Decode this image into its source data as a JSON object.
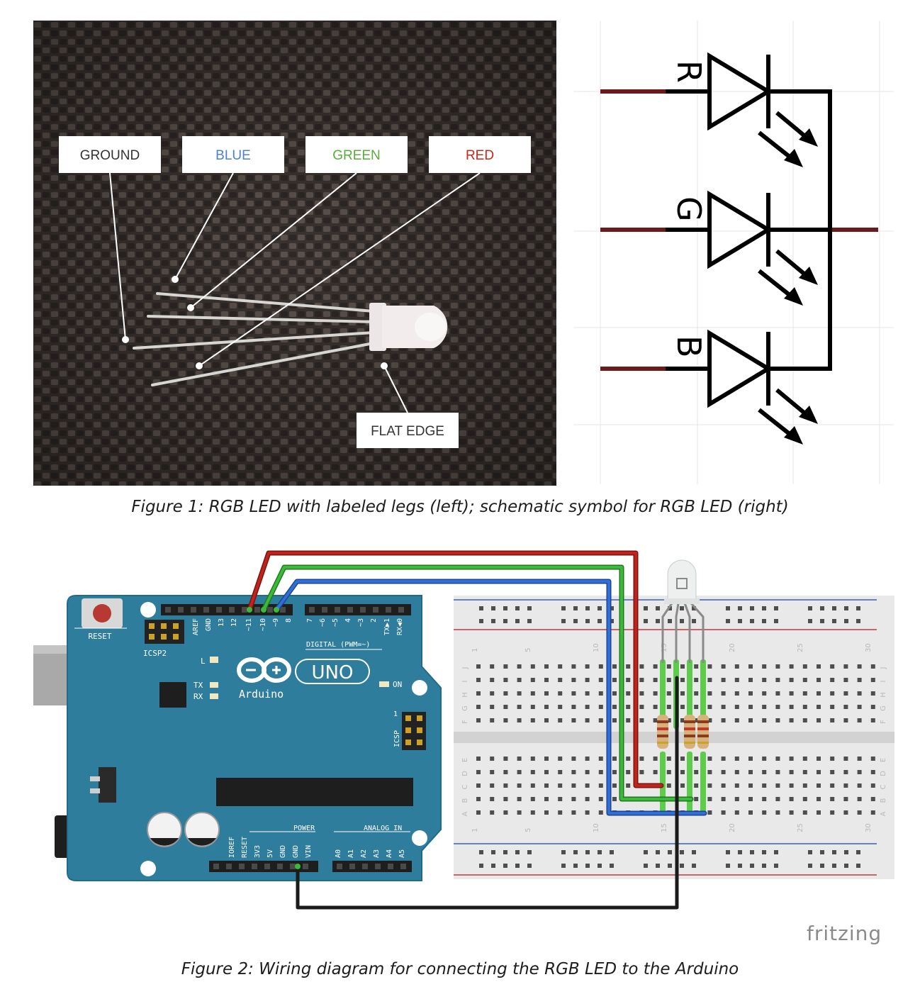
{
  "figure1": {
    "labels": {
      "ground": "GROUND",
      "blue": "BLUE",
      "green": "GREEN",
      "red": "RED",
      "flat_edge": "FLAT EDGE"
    },
    "schematic": {
      "r": "R",
      "g": "G",
      "b": "B"
    },
    "caption": "Figure 1: RGB LED with labeled legs (left); schematic symbol for RGB LED (right)"
  },
  "figure2": {
    "board": {
      "reset": "RESET",
      "icsp2": "ICSP2",
      "aref": "AREF",
      "gnd": "GND",
      "p13": "13",
      "p12": "12",
      "p11": "~11",
      "p10": "~10",
      "p9": "~9",
      "p8": "8",
      "p7": "7",
      "p6": "~6",
      "p5": "~5",
      "p4": "4",
      "p3": "~3",
      "p2": "2",
      "tx1": "TX▶1",
      "rx0": "RX◀0",
      "digital": "DIGITAL (PWM=~)",
      "l": "L",
      "uno": "UNO",
      "arduino": "Arduino",
      "tx": "TX",
      "rx": "RX",
      "on": "ON",
      "icsp": "ICSP",
      "icsp_pin1": "1",
      "power": "POWER",
      "analog_in": "ANALOG IN",
      "power_pins": [
        "IOREF",
        "RESET",
        "3V3",
        "5V",
        "GND",
        "GND",
        "VIN"
      ],
      "analog_pins": [
        "A0",
        "A1",
        "A2",
        "A3",
        "A4",
        "A5"
      ]
    },
    "breadboard": {
      "column_numbers": [
        "1",
        "5",
        "10",
        "15",
        "20",
        "25",
        "30"
      ],
      "top_rows": [
        "J",
        "I",
        "H",
        "G",
        "F"
      ],
      "bottom_rows": [
        "E",
        "D",
        "C",
        "B",
        "A"
      ]
    },
    "wire_colors": {
      "red": "#c0231b",
      "green": "#3cb83a",
      "blue": "#2f6fd6",
      "black": "#1b1b1b"
    },
    "brand": "fritzing",
    "caption": "Figure 2: Wiring diagram for connecting the RGB LED to the Arduino"
  }
}
